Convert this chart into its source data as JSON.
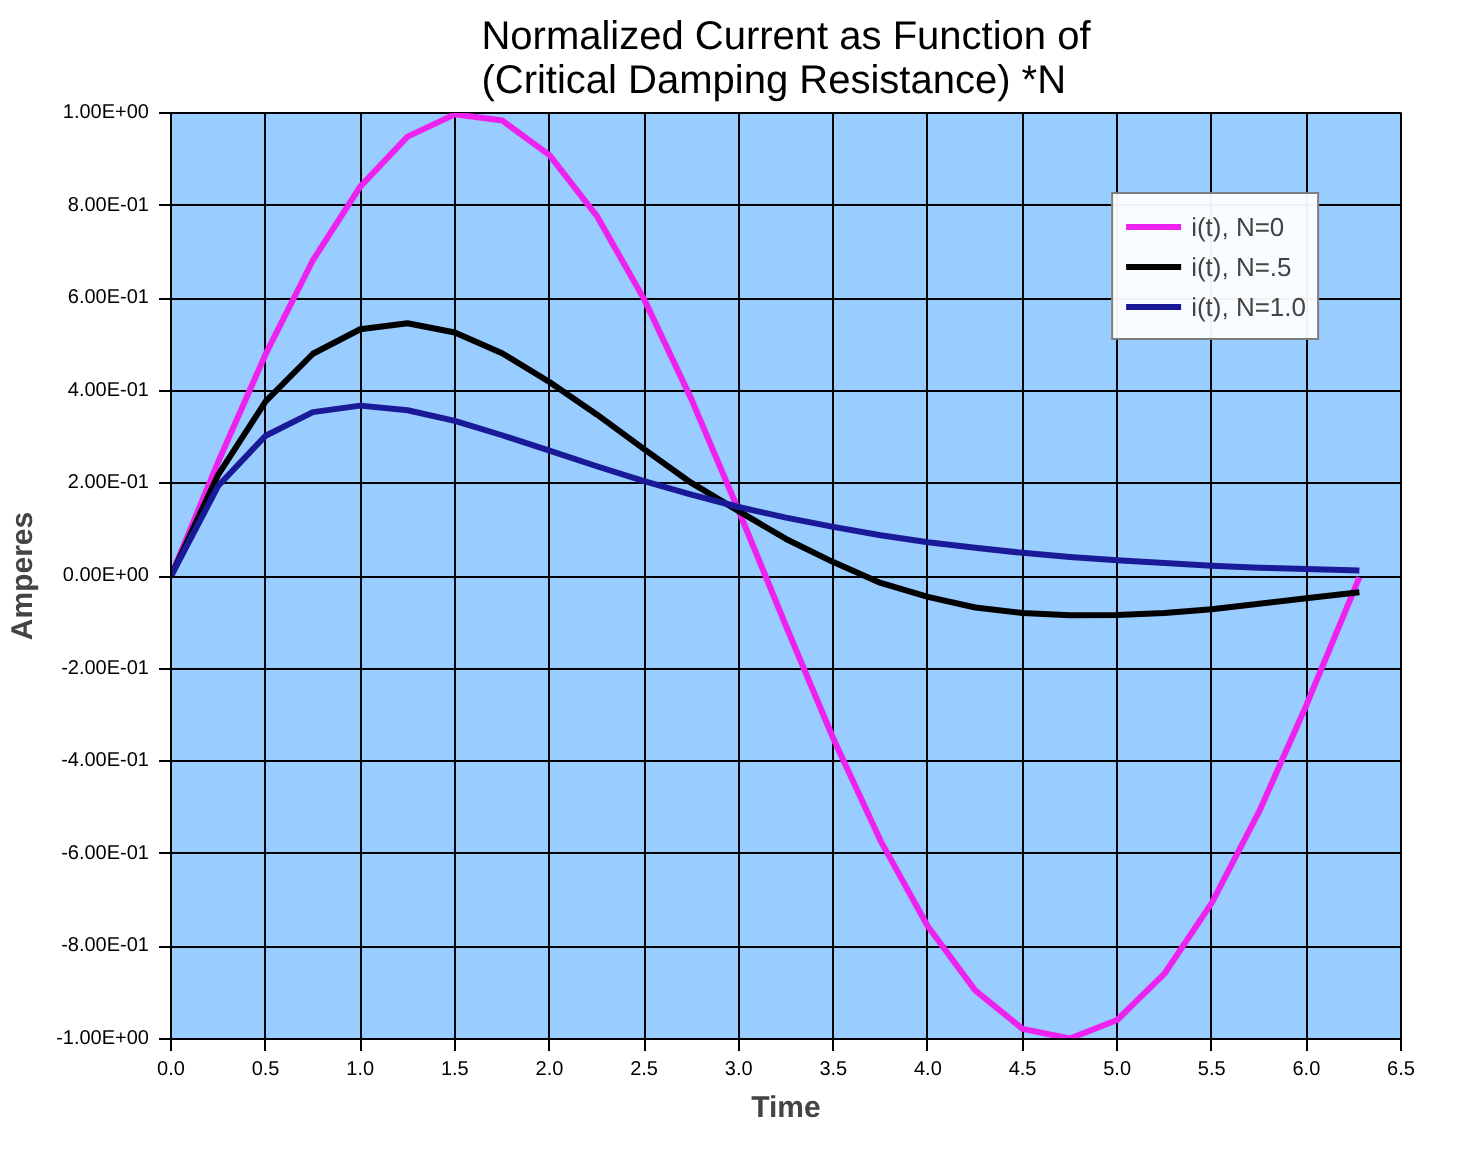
{
  "chart_data": {
    "type": "line",
    "title": "Normalized Current as Function of\n(Critical Damping Resistance) *N",
    "xlabel": "Time",
    "ylabel": "Amperes",
    "x": [
      0,
      0.25,
      0.5,
      0.75,
      1,
      1.25,
      1.5,
      1.75,
      2,
      2.25,
      2.5,
      2.75,
      3,
      3.25,
      3.5,
      3.75,
      4,
      4.25,
      4.5,
      4.75,
      5,
      5.25,
      5.5,
      5.75,
      6,
      6.28
    ],
    "series": [
      {
        "name": "i(t), N=0",
        "color": "#ee22ee",
        "values": [
          0,
          0.247,
          0.479,
          0.682,
          0.841,
          0.949,
          0.997,
          0.984,
          0.909,
          0.778,
          0.598,
          0.382,
          0.141,
          -0.108,
          -0.351,
          -0.572,
          -0.757,
          -0.895,
          -0.978,
          -0.999,
          -0.959,
          -0.859,
          -0.706,
          -0.509,
          -0.279,
          -0.003
        ]
      },
      {
        "name": "i(t), N=.5",
        "color": "#000000",
        "values": [
          0,
          0.219,
          0.377,
          0.48,
          0.533,
          0.546,
          0.526,
          0.481,
          0.419,
          0.349,
          0.274,
          0.201,
          0.14,
          0.08,
          0.03,
          -0.015,
          -0.045,
          -0.068,
          -0.08,
          -0.085,
          -0.084,
          -0.08,
          -0.072,
          -0.06,
          -0.048,
          -0.035
        ]
      },
      {
        "name": "i(t), N=1.0",
        "color": "#1a1a99",
        "values": [
          0,
          0.195,
          0.303,
          0.354,
          0.368,
          0.358,
          0.335,
          0.304,
          0.271,
          0.237,
          0.205,
          0.176,
          0.149,
          0.126,
          0.106,
          0.088,
          0.073,
          0.061,
          0.05,
          0.041,
          0.034,
          0.028,
          0.022,
          0.018,
          0.015,
          0.012
        ]
      }
    ],
    "xlim": [
      0,
      6.5
    ],
    "ylim": [
      -1,
      1
    ],
    "xticks": [
      {
        "value": 0,
        "label": "0.0"
      },
      {
        "value": 0.5,
        "label": "0.5"
      },
      {
        "value": 1,
        "label": "1.0"
      },
      {
        "value": 1.5,
        "label": "1.5"
      },
      {
        "value": 2,
        "label": "2.0"
      },
      {
        "value": 2.5,
        "label": "2.5"
      },
      {
        "value": 3,
        "label": "3.0"
      },
      {
        "value": 3.5,
        "label": "3.5"
      },
      {
        "value": 4,
        "label": "4.0"
      },
      {
        "value": 4.5,
        "label": "4.5"
      },
      {
        "value": 5,
        "label": "5.0"
      },
      {
        "value": 5.5,
        "label": "5.5"
      },
      {
        "value": 6,
        "label": "6.0"
      },
      {
        "value": 6.5,
        "label": "6.5"
      }
    ],
    "yticks": [
      {
        "value": -1,
        "label": "-1.00E+00"
      },
      {
        "value": -0.8,
        "label": "-8.00E-01"
      },
      {
        "value": -0.6,
        "label": "-6.00E-01"
      },
      {
        "value": -0.4,
        "label": "-4.00E-01"
      },
      {
        "value": -0.2,
        "label": "-2.00E-01"
      },
      {
        "value": 0,
        "label": "0.00E+00"
      },
      {
        "value": 0.2,
        "label": "2.00E-01"
      },
      {
        "value": 0.4,
        "label": "4.00E-01"
      },
      {
        "value": 0.6,
        "label": "6.00E-01"
      },
      {
        "value": 0.8,
        "label": "8.00E-01"
      },
      {
        "value": 1,
        "label": "1.00E+00"
      }
    ],
    "grid": true,
    "legend": "top right",
    "marker": "none",
    "line_style": "solid"
  }
}
